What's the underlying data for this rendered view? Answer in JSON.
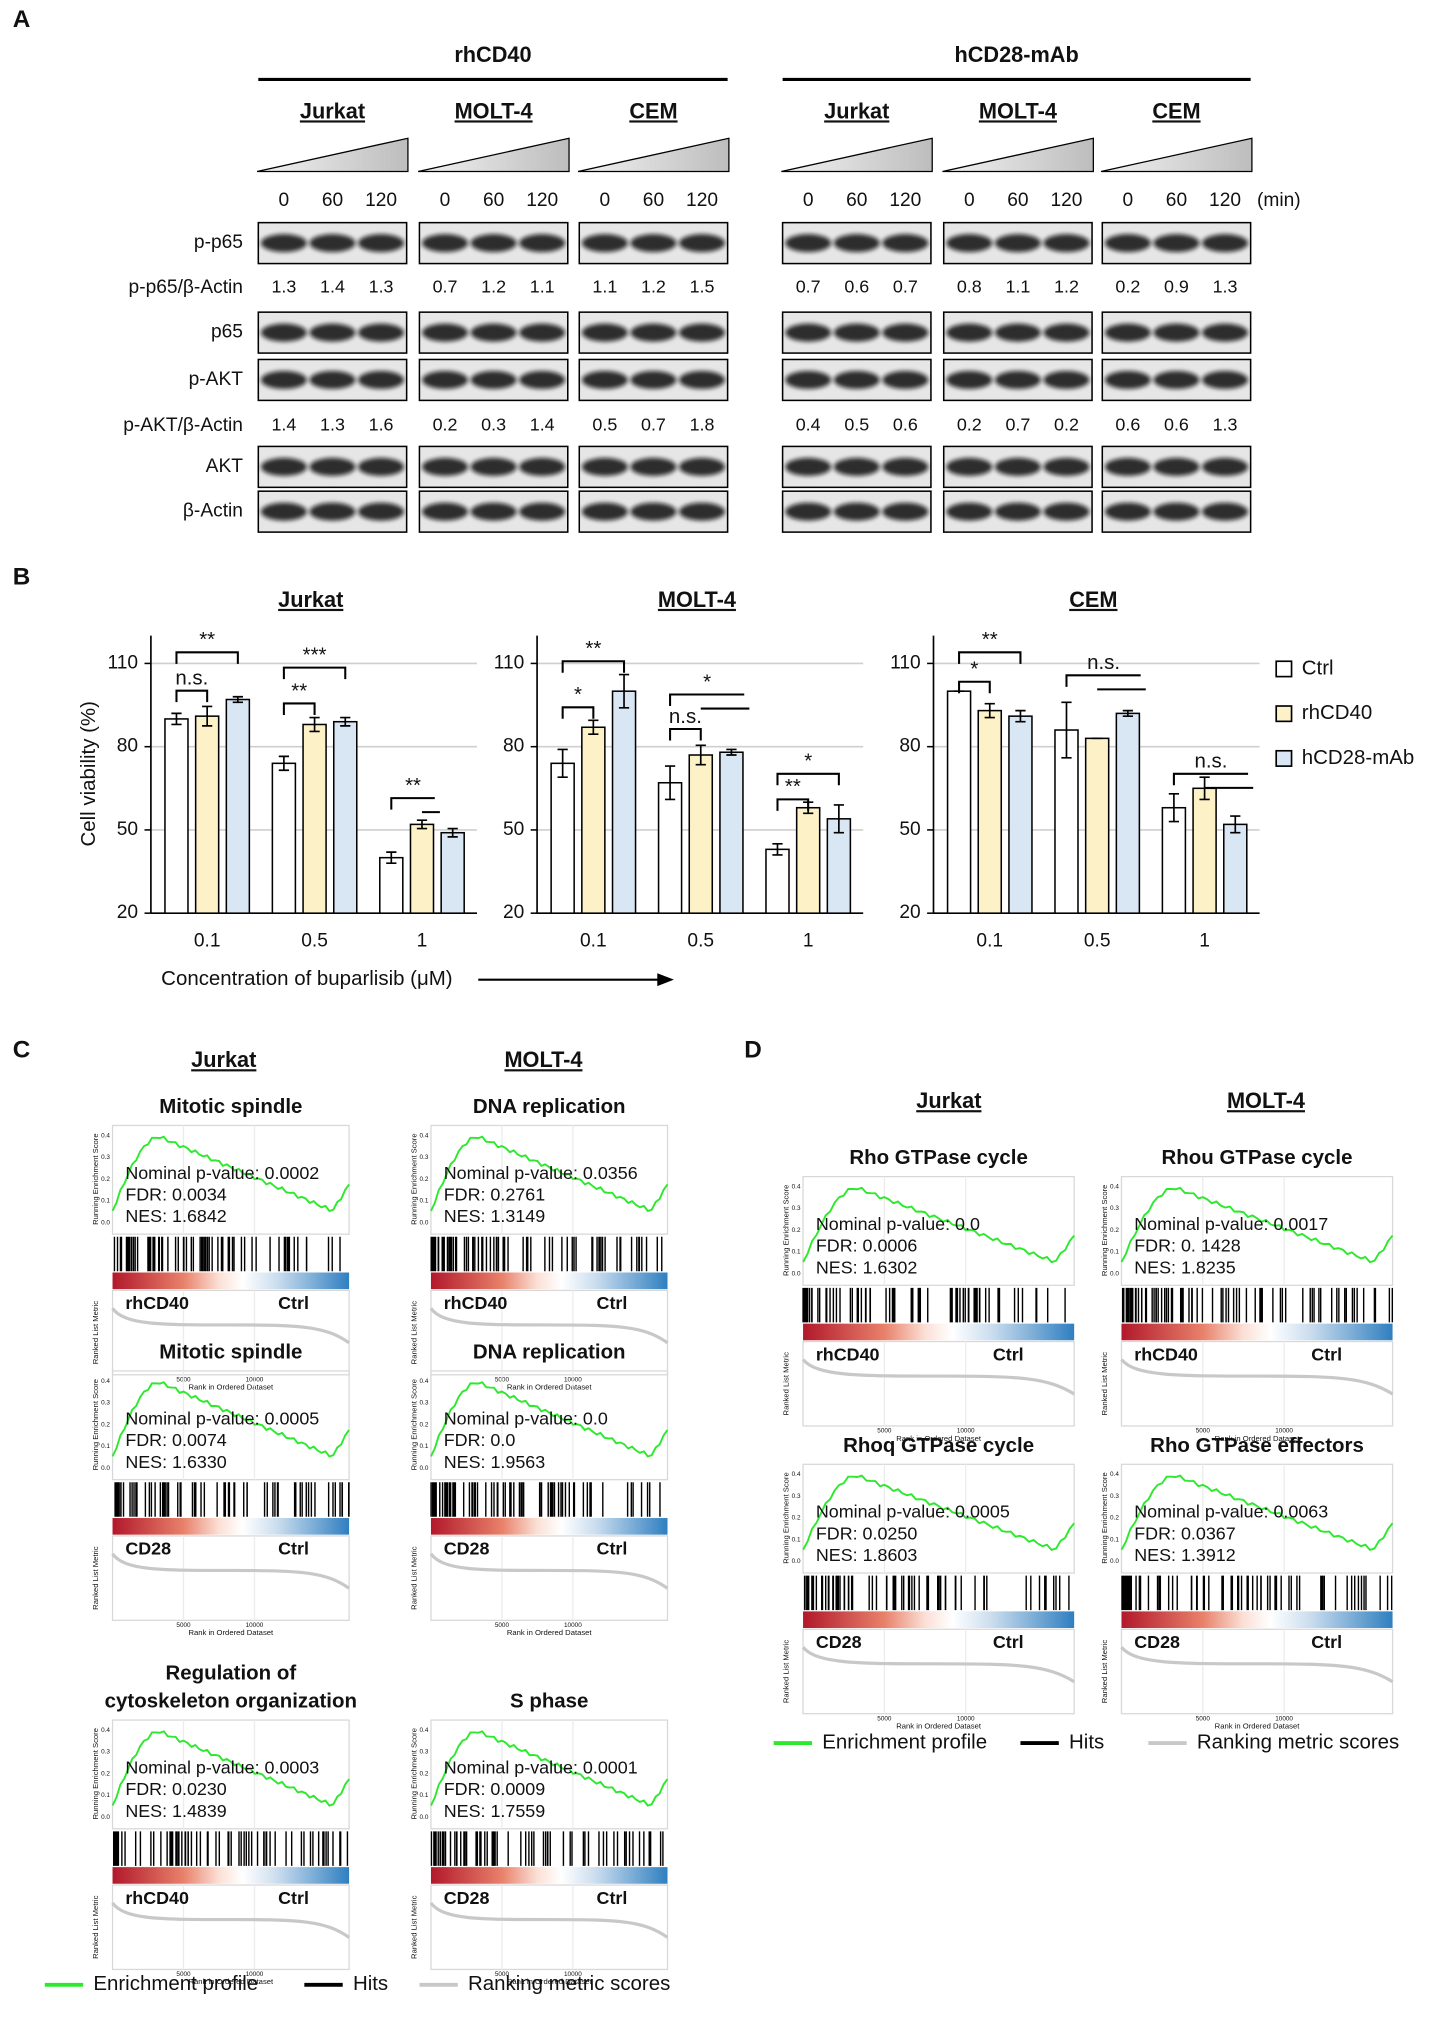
{
  "panel_labels": [
    "A",
    "B",
    "C",
    "D"
  ],
  "western_blot": {
    "rows": [
      "p-p65",
      "p-p65/β-Actin",
      "p65",
      "p-AKT",
      "p-AKT/β-Actin",
      "AKT",
      "β-Actin"
    ],
    "time_unit": "(min)",
    "treatments": [
      {
        "name": "rhCD40",
        "cells": [
          {
            "name": "Jurkat",
            "times": [
              "0",
              "60",
              "120"
            ],
            "p_p65_ratio": [
              1.3,
              1.4,
              1.3
            ],
            "p_akt_ratio": [
              1.4,
              1.3,
              1.6
            ]
          },
          {
            "name": "MOLT-4",
            "times": [
              "0",
              "60",
              "120"
            ],
            "p_p65_ratio": [
              0.7,
              1.2,
              1.1
            ],
            "p_akt_ratio": [
              0.2,
              0.3,
              1.4
            ]
          },
          {
            "name": "CEM",
            "times": [
              "0",
              "60",
              "120"
            ],
            "p_p65_ratio": [
              1.1,
              1.2,
              1.5
            ],
            "p_akt_ratio": [
              0.5,
              0.7,
              1.8
            ]
          }
        ]
      },
      {
        "name": "hCD28-mAb",
        "cells": [
          {
            "name": "Jurkat",
            "times": [
              "0",
              "60",
              "120"
            ],
            "p_p65_ratio": [
              0.7,
              0.6,
              0.7
            ],
            "p_akt_ratio": [
              0.4,
              0.5,
              0.6
            ]
          },
          {
            "name": "MOLT-4",
            "times": [
              "0",
              "60",
              "120"
            ],
            "p_p65_ratio": [
              0.8,
              1.1,
              1.2
            ],
            "p_akt_ratio": [
              0.2,
              0.7,
              0.2
            ]
          },
          {
            "name": "CEM",
            "times": [
              "0",
              "60",
              "120"
            ],
            "p_p65_ratio": [
              0.2,
              0.9,
              1.3
            ],
            "p_akt_ratio": [
              0.6,
              0.6,
              1.3
            ]
          }
        ]
      }
    ]
  },
  "chart_data": {
    "type": "bar",
    "ylabel": "Cell viability (%)",
    "xlabel": "Concentration of buparlisib (μM)",
    "categories": [
      "0.1",
      "0.5",
      "1"
    ],
    "ylim": [
      20,
      120
    ],
    "yticks": [
      20,
      50,
      80,
      110
    ],
    "grid": true,
    "legend": "right",
    "series": [
      {
        "name": "Ctrl",
        "color": "#ffffff"
      },
      {
        "name": "rhCD40",
        "color": "#fdf1c7"
      },
      {
        "name": "hCD28-mAb",
        "color": "#d9e7f5"
      }
    ],
    "panels": [
      {
        "title": "Jurkat",
        "values": [
          [
            90,
            74,
            40
          ],
          [
            91,
            88,
            52
          ],
          [
            97,
            89,
            49
          ]
        ],
        "errors": [
          [
            2,
            2.5,
            2
          ],
          [
            3.5,
            2.5,
            1.5
          ],
          [
            1,
            1.5,
            1.5
          ]
        ],
        "annotations": [
          "**",
          "n.s.",
          "***",
          "**",
          "**"
        ]
      },
      {
        "title": "MOLT-4",
        "values": [
          [
            74,
            67,
            43
          ],
          [
            87,
            77,
            58
          ],
          [
            100,
            78,
            54
          ]
        ],
        "errors": [
          [
            5,
            6,
            2
          ],
          [
            2.5,
            3.5,
            2
          ],
          [
            6,
            1,
            5
          ]
        ],
        "annotations": [
          "**",
          "*",
          "*",
          "n.s.",
          "*",
          "**"
        ]
      },
      {
        "title": "CEM",
        "values": [
          [
            100,
            86,
            58
          ],
          [
            93,
            83,
            65
          ],
          [
            91,
            92,
            52
          ]
        ],
        "errors": [
          [
            0,
            10,
            5
          ],
          [
            2.5,
            0,
            4
          ],
          [
            2,
            1,
            3
          ]
        ],
        "annotations": [
          "**",
          "*",
          "n.s.",
          "n.s."
        ]
      }
    ]
  },
  "gsea": {
    "axis_texts": {
      "es": "Running Enrichment Score",
      "metric": "Ranked List Metric",
      "rank": "Rank in Ordered Dataset",
      "rank_ticks": [
        "5000",
        "10000"
      ],
      "es_ticks": [
        "0.4",
        "0.3",
        "0.2",
        "0.1",
        "0.0"
      ]
    },
    "legend": [
      {
        "label": "Enrichment profile",
        "color": "#2ee82e"
      },
      {
        "label": "Hits",
        "color": "#000000"
      },
      {
        "label": "Ranking metric scores",
        "color": "#c8c8c8"
      }
    ],
    "panels": [
      {
        "columns": [
          "Jurkat",
          "MOLT-4"
        ],
        "plots": [
          [
            {
              "title": [
                "Mitotic spindle"
              ],
              "stats": [
                "Nominal p-value: 0.0002",
                "FDR: 0.0034",
                "NES: 1.6842"
              ],
              "labels": [
                "rhCD40",
                "Ctrl"
              ],
              "label_color": "#c8570f"
            },
            {
              "title": [
                "Mitotic spindle"
              ],
              "stats": [
                "Nominal p-value: 0.0005",
                "FDR: 0.0074",
                "NES: 1.6330"
              ],
              "labels": [
                "CD28",
                "Ctrl"
              ],
              "label_color": "#1f3ccf"
            },
            {
              "title": [
                "Regulation of",
                "cytoskeleton organization"
              ],
              "stats": [
                "Nominal p-value: 0.0003",
                "FDR: 0.0230",
                "NES: 1.4839"
              ],
              "labels": [
                "rhCD40",
                "Ctrl"
              ],
              "label_color": "#c8570f"
            }
          ],
          [
            {
              "title": [
                "DNA replication"
              ],
              "stats": [
                "Nominal p-value: 0.0356",
                "FDR: 0.2761",
                "NES: 1.3149"
              ],
              "labels": [
                "rhCD40",
                "Ctrl"
              ],
              "label_color": "#c8570f"
            },
            {
              "title": [
                "DNA replication"
              ],
              "stats": [
                "Nominal p-value: 0.0",
                "FDR: 0.0",
                "NES: 1.9563"
              ],
              "labels": [
                "CD28",
                "Ctrl"
              ],
              "label_color": "#1f3ccf"
            },
            {
              "title": [
                "S phase"
              ],
              "stats": [
                "Nominal p-value: 0.0001",
                "FDR: 0.0009",
                "NES: 1.7559"
              ],
              "labels": [
                "CD28",
                "Ctrl"
              ],
              "label_color": "#1f3ccf"
            }
          ]
        ]
      },
      {
        "columns": [
          "Jurkat",
          "MOLT-4"
        ],
        "plots": [
          [
            {
              "title": [
                "Rho GTPase cycle"
              ],
              "stats": [
                "Nominal p-value: 0.0",
                "FDR: 0.0006",
                "NES: 1.6302"
              ],
              "labels": [
                "rhCD40",
                "Ctrl"
              ],
              "label_color": "#c8570f"
            },
            {
              "title": [
                "Rhoq GTPase cycle"
              ],
              "stats": [
                "Nominal p-value: 0.0005",
                "FDR: 0.0250",
                "NES: 1.8603"
              ],
              "labels": [
                "CD28",
                "Ctrl"
              ],
              "label_color": "#1f3ccf"
            }
          ],
          [
            {
              "title": [
                "Rhou GTPase cycle"
              ],
              "stats": [
                "Nominal p-value: 0.0017",
                "FDR: 0. 1428",
                "NES: 1.8235"
              ],
              "labels": [
                "rhCD40",
                "Ctrl"
              ],
              "label_color": "#c8570f"
            },
            {
              "title": [
                "Rho GTPase effectors"
              ],
              "stats": [
                "Nominal p-value: 0.0063",
                "FDR: 0.0367",
                "NES: 1.3912"
              ],
              "labels": [
                "CD28",
                "Ctrl"
              ],
              "label_color": "#1f3ccf"
            }
          ]
        ]
      }
    ]
  }
}
